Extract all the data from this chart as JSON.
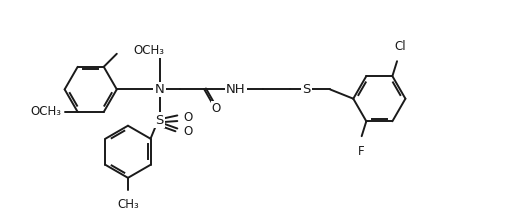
{
  "bg_color": "#ffffff",
  "line_color": "#1a1a1a",
  "line_width": 1.4,
  "font_size": 8.5,
  "figsize": [
    5.25,
    2.11
  ],
  "dpi": 100,
  "labels": {
    "OCH3_top": "OCH₃",
    "OCH3_left": "OCH₃",
    "N": "N",
    "S_sulfonyl": "S",
    "O1": "O",
    "O2": "O",
    "NH": "NH",
    "S_thio": "S",
    "Cl": "Cl",
    "F": "F",
    "CH3": "CH₃",
    "O_carbonyl": "O"
  }
}
